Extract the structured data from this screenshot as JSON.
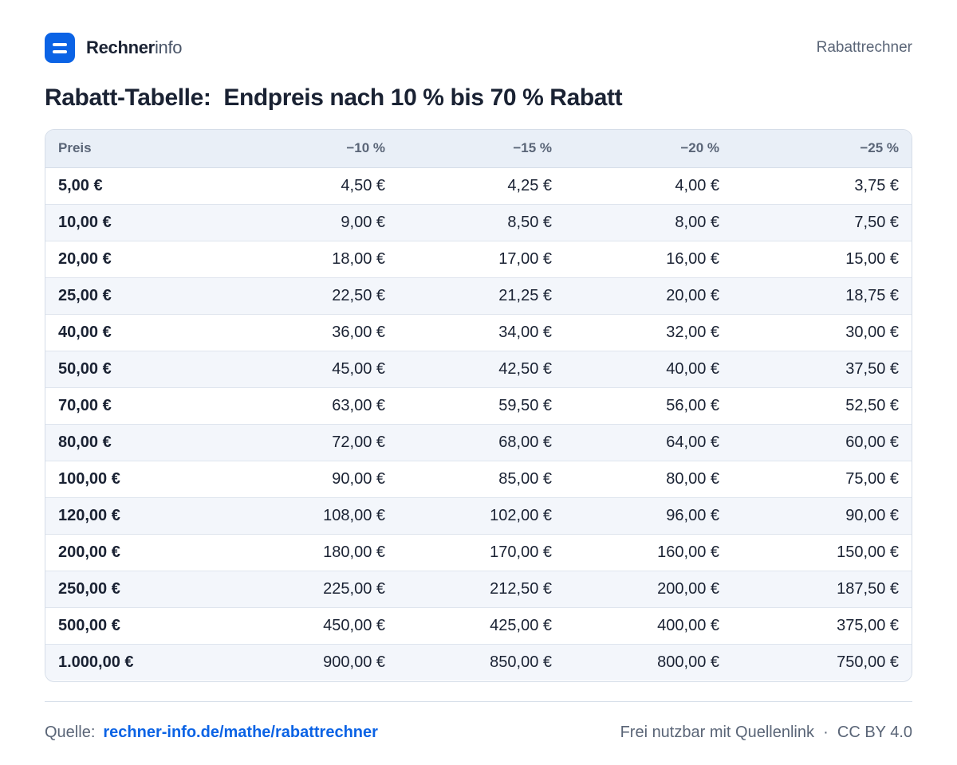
{
  "header": {
    "brand_strong": "Rechner",
    "brand_light": "info",
    "right_label": "Rabattrechner"
  },
  "title": "Rabatt-Tabelle:  Endpreis nach 10 % bis 70 % Rabatt",
  "table": {
    "columns": [
      "Preis",
      "−10 %",
      "−15 %",
      "−20 %",
      "−25 %"
    ],
    "rows": [
      [
        "5,00 €",
        "4,50 €",
        "4,25 €",
        "4,00 €",
        "3,75 €"
      ],
      [
        "10,00 €",
        "9,00 €",
        "8,50 €",
        "8,00 €",
        "7,50 €"
      ],
      [
        "20,00 €",
        "18,00 €",
        "17,00 €",
        "16,00 €",
        "15,00 €"
      ],
      [
        "25,00 €",
        "22,50 €",
        "21,25 €",
        "20,00 €",
        "18,75 €"
      ],
      [
        "40,00 €",
        "36,00 €",
        "34,00 €",
        "32,00 €",
        "30,00 €"
      ],
      [
        "50,00 €",
        "45,00 €",
        "42,50 €",
        "40,00 €",
        "37,50 €"
      ],
      [
        "70,00 €",
        "63,00 €",
        "59,50 €",
        "56,00 €",
        "52,50 €"
      ],
      [
        "80,00 €",
        "72,00 €",
        "68,00 €",
        "64,00 €",
        "60,00 €"
      ],
      [
        "100,00 €",
        "90,00 €",
        "85,00 €",
        "80,00 €",
        "75,00 €"
      ],
      [
        "120,00 €",
        "108,00 €",
        "102,00 €",
        "96,00 €",
        "90,00 €"
      ],
      [
        "200,00 €",
        "180,00 €",
        "170,00 €",
        "160,00 €",
        "150,00 €"
      ],
      [
        "250,00 €",
        "225,00 €",
        "212,50 €",
        "200,00 €",
        "187,50 €"
      ],
      [
        "500,00 €",
        "450,00 €",
        "425,00 €",
        "400,00 €",
        "375,00 €"
      ],
      [
        "1.000,00 €",
        "900,00 €",
        "850,00 €",
        "800,00 €",
        "750,00 €"
      ]
    ]
  },
  "footer": {
    "source_label": "Quelle:",
    "source_link": "rechner-info.de/mathe/rabattrechner",
    "license": "Frei nutzbar mit Quellenlink  ·  CC BY 4.0"
  },
  "colors": {
    "accent": "#0b63e5",
    "text": "#1a2233",
    "muted": "#5a6577",
    "header_row": "#e9eff7",
    "stripe": "#f3f6fb"
  },
  "icons": {
    "logo": "equals-icon"
  }
}
